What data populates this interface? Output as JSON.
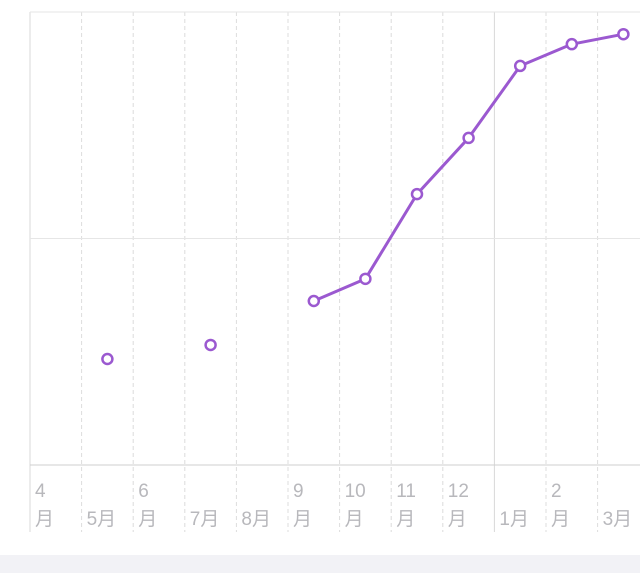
{
  "chart_data": {
    "type": "line",
    "categories": [
      "4\n月",
      "5月",
      "6\n月",
      "7月",
      "8月",
      "9\n月",
      "10\n月",
      "11\n月",
      "12\n月",
      "1月",
      "2\n月",
      "3月"
    ],
    "values": [
      null,
      23.4,
      null,
      26.5,
      null,
      36.2,
      41.1,
      59.8,
      72.2,
      88.1,
      92.9,
      95.1
    ],
    "color": "#9b59d0",
    "ylim": [
      0,
      100
    ],
    "ygrid": [
      0,
      50,
      100
    ],
    "grid": true
  }
}
